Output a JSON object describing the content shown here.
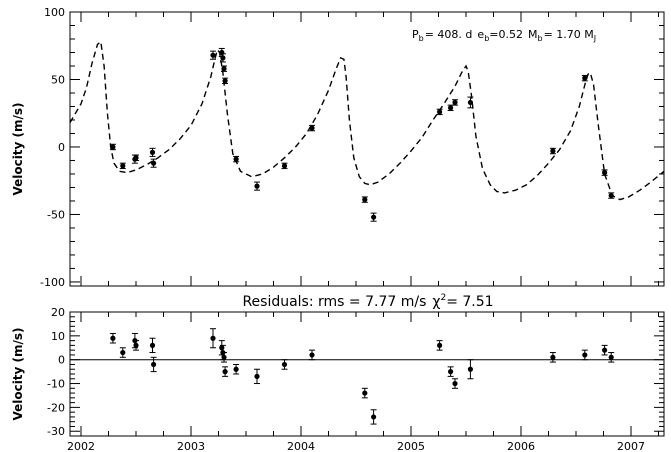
{
  "chart_data": [
    {
      "type": "scatter",
      "panel": "top",
      "title": "",
      "ylabel": "Velocity (m/s)",
      "xlim": [
        2001.9,
        2007.3
      ],
      "ylim": [
        -103,
        100
      ],
      "y_ticks": [
        "100",
        "50",
        "0",
        "-50",
        "-100"
      ],
      "annotation": {
        "pb_label": "P",
        "pb_sub": "b",
        "pb_value": "= 408. d",
        "eb_label": "e",
        "eb_sub": "b",
        "eb_value": "=0.52",
        "mb_label": "M",
        "mb_sub": "b",
        "mb_value": "=  1.70 M",
        "mj_sub": "J"
      },
      "series": [
        {
          "style": "points-with-errorbars",
          "points": [
            {
              "x": 2002.29,
              "y": 0,
              "err": 2
            },
            {
              "x": 2002.38,
              "y": -14,
              "err": 2
            },
            {
              "x": 2002.49,
              "y": -9,
              "err": 3
            },
            {
              "x": 2002.5,
              "y": -8,
              "err": 2
            },
            {
              "x": 2002.65,
              "y": -4,
              "err": 3
            },
            {
              "x": 2002.66,
              "y": -12,
              "err": 3
            },
            {
              "x": 2003.2,
              "y": 68,
              "err": 3
            },
            {
              "x": 2003.28,
              "y": 70,
              "err": 3
            },
            {
              "x": 2003.29,
              "y": 66,
              "err": 3
            },
            {
              "x": 2003.3,
              "y": 58,
              "err": 2
            },
            {
              "x": 2003.31,
              "y": 49,
              "err": 2
            },
            {
              "x": 2003.41,
              "y": -9,
              "err": 2
            },
            {
              "x": 2003.6,
              "y": -29,
              "err": 3
            },
            {
              "x": 2003.85,
              "y": -14,
              "err": 2
            },
            {
              "x": 2004.1,
              "y": 14,
              "err": 2
            },
            {
              "x": 2004.58,
              "y": -39,
              "err": 2
            },
            {
              "x": 2004.66,
              "y": -52,
              "err": 3
            },
            {
              "x": 2005.26,
              "y": 26,
              "err": 2
            },
            {
              "x": 2005.36,
              "y": 29,
              "err": 2
            },
            {
              "x": 2005.4,
              "y": 33,
              "err": 2
            },
            {
              "x": 2005.54,
              "y": 33,
              "err": 4
            },
            {
              "x": 2006.29,
              "y": -3,
              "err": 2
            },
            {
              "x": 2006.58,
              "y": 51,
              "err": 2
            },
            {
              "x": 2006.76,
              "y": -19,
              "err": 2
            },
            {
              "x": 2006.82,
              "y": -36,
              "err": 2
            }
          ]
        },
        {
          "style": "dashed-model",
          "period_days": 408,
          "eccentricity": 0.52,
          "x": [
            2001.9,
            2002.0,
            2002.05,
            2002.1,
            2002.15,
            2002.18,
            2002.21,
            2002.24,
            2002.27,
            2002.3,
            2002.35,
            2002.42,
            2002.5,
            2002.6,
            2002.7,
            2002.8,
            2002.9,
            2003.0,
            2003.1,
            2003.18,
            2003.22,
            2003.24,
            2003.26,
            2003.29,
            2003.33,
            2003.38,
            2003.45,
            2003.55,
            2003.65,
            2003.75,
            2003.85,
            2003.95,
            2004.05,
            2004.15,
            2004.25,
            2004.32,
            2004.36,
            2004.39,
            2004.41,
            2004.44,
            2004.48,
            2004.53,
            2004.58,
            2004.63,
            2004.7,
            2004.8,
            2004.9,
            2005.0,
            2005.1,
            2005.2,
            2005.3,
            2005.4,
            2005.46,
            2005.5,
            2005.52,
            2005.55,
            2005.59,
            2005.65,
            2005.72,
            2005.78,
            2005.85,
            2005.95,
            2006.05,
            2006.15,
            2006.25,
            2006.35,
            2006.45,
            2006.53,
            2006.58,
            2006.61,
            2006.63,
            2006.66,
            2006.7,
            2006.76,
            2006.83,
            2006.9,
            2006.98,
            2007.08,
            2007.18,
            2007.3
          ],
          "y": [
            18,
            32,
            44,
            62,
            76,
            78,
            60,
            25,
            0,
            -12,
            -18,
            -19,
            -17,
            -13,
            -8,
            -2,
            6,
            16,
            32,
            52,
            66,
            72,
            70,
            55,
            25,
            -5,
            -18,
            -22,
            -20,
            -15,
            -8,
            0,
            10,
            24,
            42,
            58,
            66,
            65,
            52,
            20,
            -8,
            -22,
            -27,
            -28,
            -26,
            -20,
            -12,
            -3,
            7,
            20,
            32,
            45,
            55,
            60,
            56,
            38,
            8,
            -16,
            -28,
            -33,
            -34,
            -32,
            -28,
            -21,
            -12,
            -2,
            12,
            30,
            46,
            54,
            55,
            46,
            18,
            -20,
            -36,
            -39,
            -37,
            -32,
            -26,
            -18
          ]
        }
      ]
    },
    {
      "type": "scatter",
      "panel": "bottom",
      "title": "Residuals: rms = 7.77 m/s",
      "title_chi": "χ",
      "title_chi_sup": "2",
      "title_chi_value": "= 7.51",
      "ylabel": "Velocity (m/s)",
      "xlim": [
        2001.9,
        2007.3
      ],
      "ylim": [
        -32,
        20
      ],
      "y_ticks": [
        "20",
        "10",
        "0",
        "-10",
        "-20",
        "-30"
      ],
      "x_ticks": [
        "2002",
        "2003",
        "2004",
        "2005",
        "2006",
        "2007"
      ],
      "points": [
        {
          "x": 2002.29,
          "y": 9,
          "err": 2
        },
        {
          "x": 2002.38,
          "y": 3,
          "err": 2
        },
        {
          "x": 2002.49,
          "y": 8,
          "err": 3
        },
        {
          "x": 2002.5,
          "y": 6,
          "err": 2
        },
        {
          "x": 2002.65,
          "y": 6,
          "err": 3
        },
        {
          "x": 2002.66,
          "y": -2,
          "err": 3
        },
        {
          "x": 2003.2,
          "y": 9,
          "err": 4
        },
        {
          "x": 2003.28,
          "y": 5,
          "err": 3
        },
        {
          "x": 2003.29,
          "y": 3,
          "err": 3
        },
        {
          "x": 2003.3,
          "y": 1,
          "err": 2
        },
        {
          "x": 2003.31,
          "y": -5,
          "err": 2
        },
        {
          "x": 2003.41,
          "y": -4,
          "err": 2
        },
        {
          "x": 2003.6,
          "y": -7,
          "err": 3
        },
        {
          "x": 2003.85,
          "y": -2,
          "err": 2
        },
        {
          "x": 2004.1,
          "y": 2,
          "err": 2
        },
        {
          "x": 2004.58,
          "y": -14,
          "err": 2
        },
        {
          "x": 2004.66,
          "y": -24,
          "err": 3
        },
        {
          "x": 2005.26,
          "y": 6,
          "err": 2
        },
        {
          "x": 2005.36,
          "y": -5,
          "err": 2
        },
        {
          "x": 2005.4,
          "y": -10,
          "err": 2
        },
        {
          "x": 2005.54,
          "y": -4,
          "err": 4
        },
        {
          "x": 2006.29,
          "y": 1,
          "err": 2
        },
        {
          "x": 2006.58,
          "y": 2,
          "err": 2
        },
        {
          "x": 2006.76,
          "y": 4,
          "err": 2
        },
        {
          "x": 2006.82,
          "y": 1,
          "err": 2
        }
      ]
    }
  ]
}
